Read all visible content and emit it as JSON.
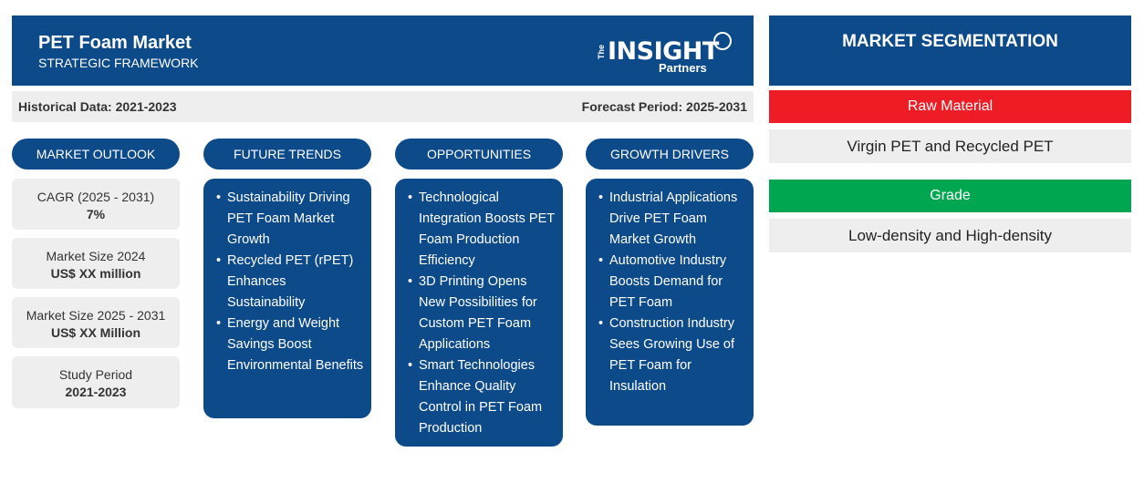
{
  "header": {
    "title": "PET Foam Market",
    "subtitle": "STRATEGIC FRAMEWORK",
    "logo": {
      "the": "The",
      "insight": "INSIGHT",
      "partners": "Partners"
    }
  },
  "period": {
    "historical": "Historical Data: 2021-2023",
    "forecast": "Forecast Period: 2025-2031"
  },
  "columns": {
    "outlook": "MARKET OUTLOOK",
    "trends": "FUTURE TRENDS",
    "opportunities": "OPPORTUNITIES",
    "drivers": "GROWTH DRIVERS"
  },
  "outlook_cards": [
    {
      "label": "CAGR (2025 - 2031)",
      "value": "7%"
    },
    {
      "label": "Market Size 2024",
      "value": "US$ XX million"
    },
    {
      "label": "Market Size 2025 - 2031",
      "value": "US$ XX Million"
    },
    {
      "label": "Study Period",
      "value": "2021-2023"
    }
  ],
  "trends": [
    "Sustainability Driving PET Foam Market Growth",
    "Recycled PET (rPET) Enhances Sustainability",
    "Energy and Weight Savings Boost Environmental Benefits"
  ],
  "opportunities": [
    "Technological Integration Boosts PET Foam Production Efficiency",
    "3D Printing Opens New Possibilities for Custom PET Foam Applications",
    "Smart Technologies Enhance Quality Control in PET Foam Production"
  ],
  "drivers": [
    "Industrial Applications Drive PET Foam Market Growth",
    "Automotive Industry Boosts Demand for PET Foam",
    "Construction Industry Sees Growing Use of PET Foam for Insulation"
  ],
  "segmentation": {
    "title": "MARKET SEGMENTATION",
    "raw_material": {
      "label": "Raw Material",
      "value": "Virgin PET and Recycled PET",
      "color": "#ee1c25"
    },
    "grade": {
      "label": "Grade",
      "value": "Low-density and High-density",
      "color": "#00a650"
    }
  },
  "colors": {
    "primary": "#0d4a8a",
    "panel": "#eeeeee"
  }
}
